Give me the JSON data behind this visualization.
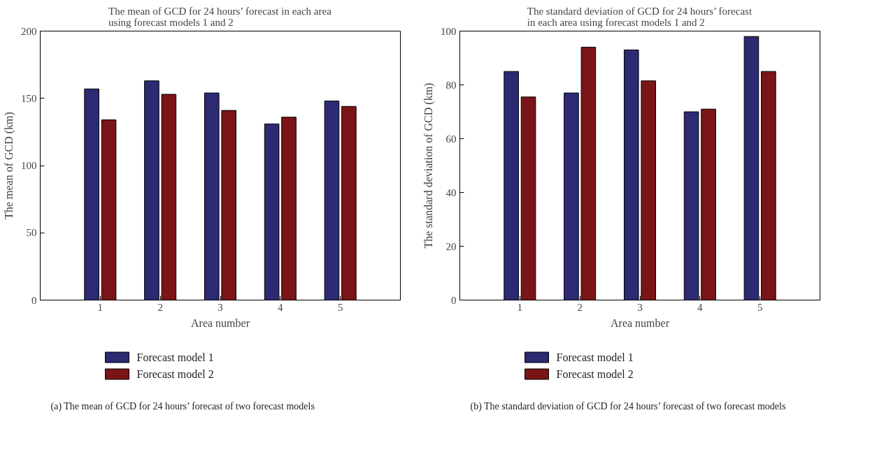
{
  "chart_data": [
    {
      "type": "bar",
      "title": "The mean of GCD for 24 hours’ forecast in each area using forecast models 1 and 2",
      "xlabel": "Area number",
      "ylabel": "The mean of GCD (km)",
      "x": [
        1,
        2,
        3,
        4,
        5
      ],
      "xlim": [
        0,
        6
      ],
      "xticks": [
        1,
        2,
        3,
        4,
        5
      ],
      "ylim": [
        0,
        200
      ],
      "yticks": [
        0,
        50,
        100,
        150,
        200
      ],
      "grid": false,
      "legend": "bottom",
      "series": [
        {
          "name": "Forecast model 1",
          "color": "#2b2a72",
          "values": [
            157,
            163,
            154,
            131,
            148
          ]
        },
        {
          "name": "Forecast model 2",
          "color": "#7b1416",
          "values": [
            134,
            153,
            141,
            136,
            144
          ]
        }
      ],
      "annotations": [
        "(a)  The mean of GCD for 24 hours’ forecast of two forecast models"
      ]
    },
    {
      "type": "bar",
      "title": "The standard deviation of GCD for 24 hours’ forecast in each area using forecast models 1 and 2",
      "xlabel": "Area number",
      "ylabel": "The standard deviation of GCD (km)",
      "x": [
        1,
        2,
        3,
        4,
        5
      ],
      "xlim": [
        0,
        6
      ],
      "xticks": [
        1,
        2,
        3,
        4,
        5
      ],
      "ylim": [
        0,
        100
      ],
      "yticks": [
        0,
        20,
        40,
        60,
        80,
        100
      ],
      "grid": false,
      "legend": "bottom",
      "series": [
        {
          "name": "Forecast model 1",
          "color": "#2b2a72",
          "values": [
            85,
            77,
            93,
            70,
            98
          ]
        },
        {
          "name": "Forecast model 2",
          "color": "#7b1416",
          "values": [
            75.5,
            94,
            81.5,
            71,
            85
          ]
        }
      ],
      "annotations": [
        "(b)  The standard deviation of GCD for 24 hours’ forecast of two forecast models"
      ]
    }
  ]
}
